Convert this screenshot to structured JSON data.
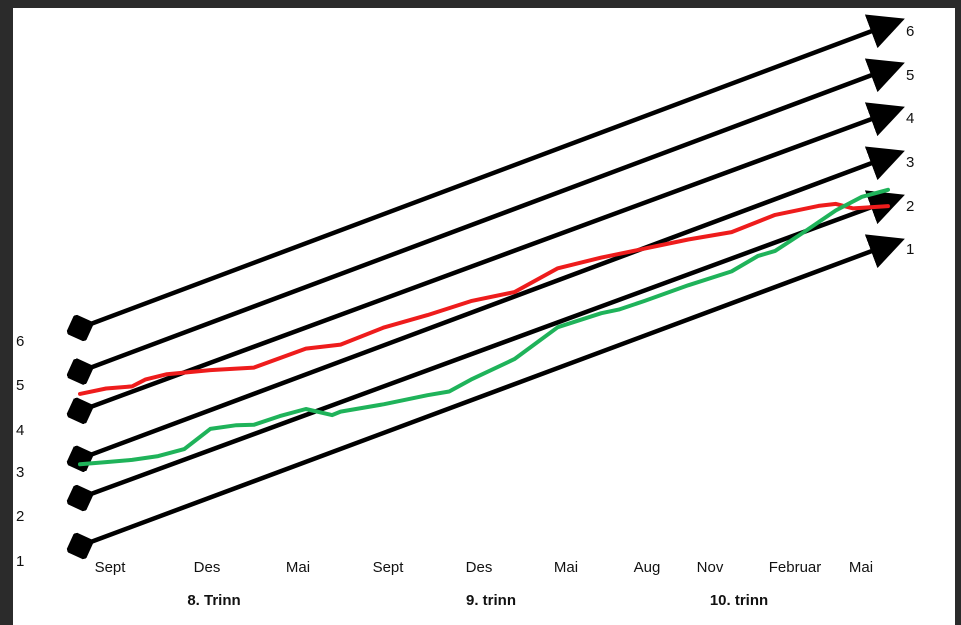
{
  "chart_data": {
    "type": "line",
    "x_tick_labels": [
      "Sept",
      "Des",
      "Mai",
      "Sept",
      "Des",
      "Mai",
      "Aug",
      "Nov",
      "Februar",
      "Mai"
    ],
    "grade_labels": [
      "8. Trinn",
      "9. trinn",
      "10. trinn"
    ],
    "left_levels": [
      "1",
      "2",
      "3",
      "4",
      "5",
      "6"
    ],
    "right_levels": [
      "1",
      "2",
      "3",
      "4",
      "5",
      "6"
    ],
    "reference_lines": [
      {
        "level": 1,
        "start": 1.0,
        "end": 1.0
      },
      {
        "level": 2,
        "start": 2.1,
        "end": 2.0
      },
      {
        "level": 3,
        "start": 3.0,
        "end": 3.0
      },
      {
        "level": 4,
        "start": 4.1,
        "end": 4.0
      },
      {
        "level": 5,
        "start": 5.0,
        "end": 5.0
      },
      {
        "level": 6,
        "start": 6.0,
        "end": 6.0
      }
    ],
    "series": [
      {
        "color": "#ee1c1c",
        "x": [
          0,
          0.3,
          0.6,
          0.75,
          1.0,
          1.5,
          2.0,
          2.6,
          3.0,
          3.5,
          4.0,
          4.5,
          5.0,
          5.5,
          6.0,
          6.5,
          7.0,
          7.5,
          8.0,
          8.5,
          8.7,
          8.9,
          9.3
        ],
        "y": [
          5.65,
          5.8,
          5.85,
          6.05,
          6.2,
          6.3,
          6.35,
          6.9,
          7.0,
          7.5,
          7.85,
          8.25,
          8.5,
          9.2,
          9.5,
          9.75,
          10.0,
          10.2,
          10.7,
          10.95,
          11.0,
          10.85,
          10.9
        ]
      },
      {
        "color": "#1fb35a",
        "x": [
          0,
          0.3,
          0.6,
          0.9,
          1.2,
          1.5,
          1.8,
          2.0,
          2.3,
          2.6,
          2.9,
          3.0,
          3.5,
          4.0,
          4.25,
          4.5,
          5.0,
          5.5,
          6.0,
          6.2,
          6.5,
          7.0,
          7.5,
          7.8,
          8.0,
          8.3,
          8.7,
          9.0,
          9.3
        ],
        "y": [
          3.5,
          3.55,
          3.6,
          3.7,
          3.9,
          4.5,
          4.6,
          4.6,
          4.85,
          5.05,
          4.85,
          4.95,
          5.15,
          5.4,
          5.5,
          5.85,
          6.45,
          7.4,
          7.8,
          7.9,
          8.15,
          8.6,
          9.0,
          9.45,
          9.6,
          10.1,
          10.8,
          11.2,
          11.4
        ]
      }
    ]
  }
}
